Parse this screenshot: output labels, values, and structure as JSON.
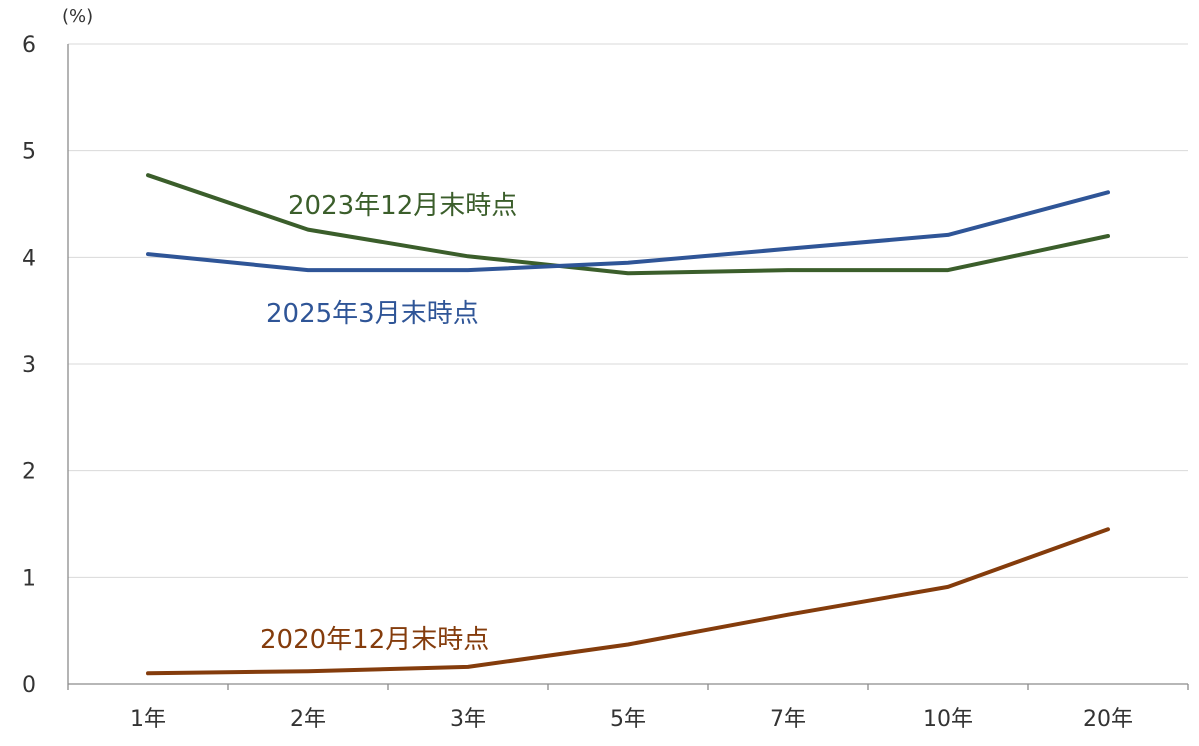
{
  "chart_data": {
    "type": "line",
    "unit_label": "(%)",
    "categories": [
      "1年",
      "2年",
      "3年",
      "5年",
      "7年",
      "10年",
      "20年"
    ],
    "ylim": [
      0,
      6
    ],
    "yticks": [
      "0",
      "1",
      "2",
      "3",
      "4",
      "5",
      "6"
    ],
    "grid": "horizontal",
    "series": [
      {
        "name": "2023年12月末時点",
        "color": "#3b5e2b",
        "values": [
          4.77,
          4.26,
          4.01,
          3.85,
          3.88,
          3.88,
          4.2
        ]
      },
      {
        "name": "2025年3月末時点",
        "color": "#2f5597",
        "values": [
          4.03,
          3.88,
          3.88,
          3.95,
          4.08,
          4.21,
          4.61
        ]
      },
      {
        "name": "2020年12月末時点",
        "color": "#843c0c",
        "values": [
          0.1,
          0.12,
          0.16,
          0.37,
          0.65,
          0.91,
          1.45
        ]
      }
    ]
  }
}
